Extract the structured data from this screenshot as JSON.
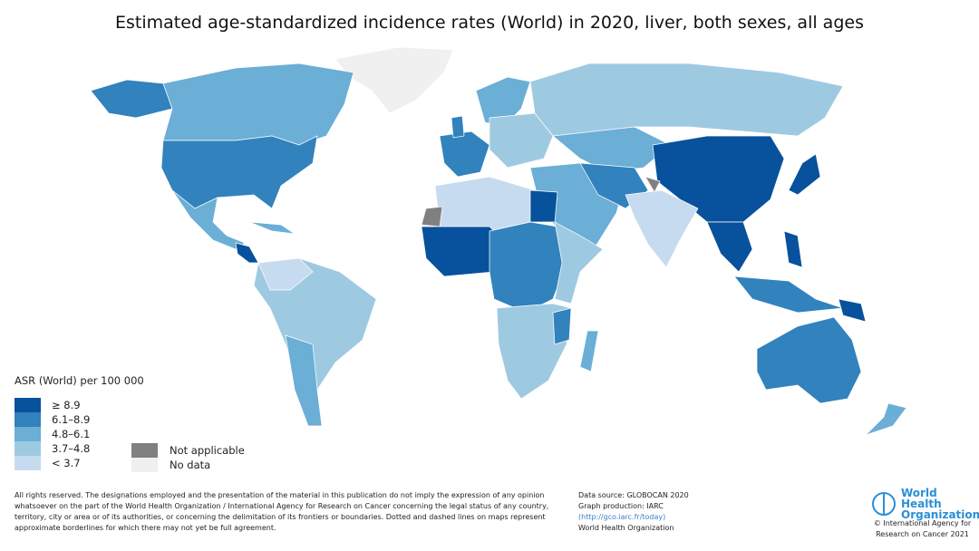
{
  "title": "Estimated age-standardized incidence rates (World) in 2020, liver, both sexes, all ages",
  "legend": {
    "title": "ASR (World) per 100 000",
    "classes": [
      {
        "label": "≥ 8.9",
        "color": "#08519c"
      },
      {
        "label": "6.1–8.9",
        "color": "#3182bd"
      },
      {
        "label": "4.8–6.1",
        "color": "#6baed6"
      },
      {
        "label": "3.7–4.8",
        "color": "#9ecae1"
      },
      {
        "label": "< 3.7",
        "color": "#c6dbef"
      }
    ],
    "not_applicable": {
      "label": "Not applicable",
      "color": "#808080"
    },
    "no_data": {
      "label": "No data",
      "color": "#f0f0f0"
    }
  },
  "footer": {
    "disclaimer": "All rights reserved. The designations employed and the presentation of the material in this publication do not imply the expression of any opinion whatsoever on the part of the World Health Organization / International Agency for Research on Cancer concerning the legal status of any country, territory, city or area or of its authorities, or concerning the delimitation of its frontiers or boundaries. Dotted and dashed lines on maps represent approximate borderlines for which there may not yet be full agreement.",
    "source": "Data source: GLOBOCAN 2020",
    "production": "Graph production: IARC",
    "link": "(http://gco.iarc.fr/today)",
    "org": "World Health Organization",
    "logo_text": "World Health Organization",
    "copyright": "© International Agency for Research on Cancer 2021"
  }
}
